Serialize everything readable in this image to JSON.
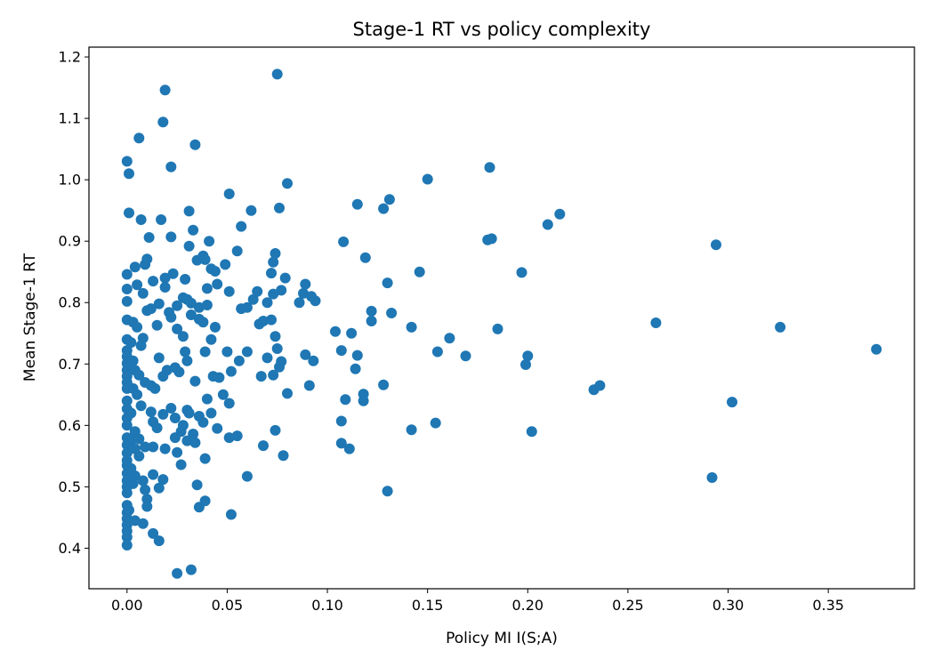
{
  "chart_data": {
    "type": "scatter",
    "title": "Stage-1 RT vs policy complexity",
    "xlabel": "Policy MI I(S;A)",
    "ylabel": "Mean Stage-1 RT",
    "xlim": [
      -0.019,
      0.393
    ],
    "ylim": [
      0.334,
      1.216
    ],
    "xticks": [
      0.0,
      0.05,
      0.1,
      0.15,
      0.2,
      0.25,
      0.3,
      0.35
    ],
    "xtick_labels": [
      "0.00",
      "0.05",
      "0.10",
      "0.15",
      "0.20",
      "0.25",
      "0.30",
      "0.35"
    ],
    "yticks": [
      0.4,
      0.5,
      0.6,
      0.7,
      0.8,
      0.9,
      1.0,
      1.1,
      1.2
    ],
    "ytick_labels": [
      "0.4",
      "0.5",
      "0.6",
      "0.7",
      "0.8",
      "0.9",
      "1.0",
      "1.1",
      "1.2"
    ],
    "grid": false,
    "marker_color": "#1f77b4",
    "points": [
      [
        0.0,
        1.03
      ],
      [
        0.001,
        1.01
      ],
      [
        0.006,
        1.068
      ],
      [
        0.018,
        1.094
      ],
      [
        0.019,
        1.146
      ],
      [
        0.022,
        1.021
      ],
      [
        0.034,
        1.057
      ],
      [
        0.075,
        1.172
      ],
      [
        0.001,
        0.946
      ],
      [
        0.007,
        0.935
      ],
      [
        0.011,
        0.906
      ],
      [
        0.017,
        0.935
      ],
      [
        0.022,
        0.907
      ],
      [
        0.031,
        0.949
      ],
      [
        0.031,
        0.892
      ],
      [
        0.033,
        0.918
      ],
      [
        0.041,
        0.9
      ],
      [
        0.051,
        0.977
      ],
      [
        0.055,
        0.884
      ],
      [
        0.057,
        0.924
      ],
      [
        0.062,
        0.95
      ],
      [
        0.076,
        0.954
      ],
      [
        0.08,
        0.994
      ],
      [
        0.0,
        0.846
      ],
      [
        0.004,
        0.858
      ],
      [
        0.009,
        0.862
      ],
      [
        0.01,
        0.871
      ],
      [
        0.019,
        0.84
      ],
      [
        0.023,
        0.847
      ],
      [
        0.029,
        0.838
      ],
      [
        0.035,
        0.869
      ],
      [
        0.038,
        0.876
      ],
      [
        0.039,
        0.87
      ],
      [
        0.042,
        0.855
      ],
      [
        0.044,
        0.851
      ],
      [
        0.049,
        0.862
      ],
      [
        0.045,
        0.83
      ],
      [
        0.04,
        0.823
      ],
      [
        0.051,
        0.818
      ],
      [
        0.0,
        0.822
      ],
      [
        0.0,
        0.802
      ],
      [
        0.005,
        0.829
      ],
      [
        0.008,
        0.815
      ],
      [
        0.013,
        0.835
      ],
      [
        0.019,
        0.825
      ],
      [
        0.016,
        0.798
      ],
      [
        0.021,
        0.784
      ],
      [
        0.025,
        0.795
      ],
      [
        0.028,
        0.808
      ],
      [
        0.03,
        0.805
      ],
      [
        0.032,
        0.799
      ],
      [
        0.036,
        0.792
      ],
      [
        0.038,
        0.768
      ],
      [
        0.04,
        0.796
      ],
      [
        0.0,
        0.772
      ],
      [
        0.003,
        0.768
      ],
      [
        0.005,
        0.76
      ],
      [
        0.01,
        0.787
      ],
      [
        0.012,
        0.79
      ],
      [
        0.015,
        0.763
      ],
      [
        0.022,
        0.776
      ],
      [
        0.025,
        0.757
      ],
      [
        0.028,
        0.745
      ],
      [
        0.032,
        0.78
      ],
      [
        0.036,
        0.773
      ],
      [
        0.039,
        0.72
      ],
      [
        0.042,
        0.74
      ],
      [
        0.044,
        0.76
      ],
      [
        0.029,
        0.72
      ],
      [
        0.05,
        0.72
      ],
      [
        0.0,
        0.74
      ],
      [
        0.0,
        0.722
      ],
      [
        0.0,
        0.712
      ],
      [
        0.0,
        0.701
      ],
      [
        0.0,
        0.69
      ],
      [
        0.0,
        0.68
      ],
      [
        0.0,
        0.67
      ],
      [
        0.0,
        0.66
      ],
      [
        0.002,
        0.735
      ],
      [
        0.003,
        0.705
      ],
      [
        0.004,
        0.69
      ],
      [
        0.006,
        0.682
      ],
      [
        0.003,
        0.66
      ],
      [
        0.005,
        0.65
      ],
      [
        0.008,
        0.742
      ],
      [
        0.007,
        0.73
      ],
      [
        0.009,
        0.67
      ],
      [
        0.012,
        0.665
      ],
      [
        0.014,
        0.66
      ],
      [
        0.016,
        0.71
      ],
      [
        0.018,
        0.68
      ],
      [
        0.02,
        0.69
      ],
      [
        0.024,
        0.694
      ],
      [
        0.026,
        0.687
      ],
      [
        0.03,
        0.705
      ],
      [
        0.034,
        0.672
      ],
      [
        0.04,
        0.643
      ],
      [
        0.043,
        0.68
      ],
      [
        0.046,
        0.678
      ],
      [
        0.048,
        0.65
      ],
      [
        0.051,
        0.636
      ],
      [
        0.052,
        0.688
      ],
      [
        0.0,
        0.64
      ],
      [
        0.0,
        0.627
      ],
      [
        0.0,
        0.612
      ],
      [
        0.0,
        0.6
      ],
      [
        0.002,
        0.62
      ],
      [
        0.004,
        0.59
      ],
      [
        0.007,
        0.632
      ],
      [
        0.012,
        0.622
      ],
      [
        0.013,
        0.606
      ],
      [
        0.015,
        0.596
      ],
      [
        0.018,
        0.618
      ],
      [
        0.022,
        0.628
      ],
      [
        0.024,
        0.612
      ],
      [
        0.028,
        0.6
      ],
      [
        0.03,
        0.625
      ],
      [
        0.031,
        0.62
      ],
      [
        0.033,
        0.586
      ],
      [
        0.036,
        0.615
      ],
      [
        0.038,
        0.605
      ],
      [
        0.042,
        0.62
      ],
      [
        0.045,
        0.595
      ],
      [
        0.0,
        0.58
      ],
      [
        0.0,
        0.568
      ],
      [
        0.0,
        0.555
      ],
      [
        0.0,
        0.543
      ],
      [
        0.002,
        0.575
      ],
      [
        0.004,
        0.562
      ],
      [
        0.006,
        0.578
      ],
      [
        0.006,
        0.55
      ],
      [
        0.009,
        0.565
      ],
      [
        0.013,
        0.565
      ],
      [
        0.019,
        0.562
      ],
      [
        0.024,
        0.58
      ],
      [
        0.027,
        0.59
      ],
      [
        0.03,
        0.575
      ],
      [
        0.034,
        0.572
      ],
      [
        0.039,
        0.546
      ],
      [
        0.051,
        0.58
      ],
      [
        0.055,
        0.583
      ],
      [
        0.027,
        0.536
      ],
      [
        0.025,
        0.556
      ],
      [
        0.0,
        0.535
      ],
      [
        0.0,
        0.522
      ],
      [
        0.0,
        0.51
      ],
      [
        0.0,
        0.5
      ],
      [
        0.0,
        0.49
      ],
      [
        0.002,
        0.53
      ],
      [
        0.003,
        0.505
      ],
      [
        0.004,
        0.518
      ],
      [
        0.008,
        0.51
      ],
      [
        0.009,
        0.495
      ],
      [
        0.01,
        0.48
      ],
      [
        0.013,
        0.52
      ],
      [
        0.016,
        0.498
      ],
      [
        0.018,
        0.512
      ],
      [
        0.035,
        0.503
      ],
      [
        0.0,
        0.47
      ],
      [
        0.0,
        0.458
      ],
      [
        0.0,
        0.448
      ],
      [
        0.0,
        0.438
      ],
      [
        0.0,
        0.428
      ],
      [
        0.0,
        0.418
      ],
      [
        0.0,
        0.405
      ],
      [
        0.001,
        0.462
      ],
      [
        0.004,
        0.445
      ],
      [
        0.008,
        0.44
      ],
      [
        0.01,
        0.468
      ],
      [
        0.013,
        0.424
      ],
      [
        0.016,
        0.412
      ],
      [
        0.036,
        0.467
      ],
      [
        0.039,
        0.477
      ],
      [
        0.052,
        0.455
      ],
      [
        0.025,
        0.359
      ],
      [
        0.032,
        0.365
      ],
      [
        0.06,
        0.517
      ],
      [
        0.074,
        0.592
      ],
      [
        0.068,
        0.567
      ],
      [
        0.078,
        0.551
      ],
      [
        0.06,
        0.72
      ],
      [
        0.057,
        0.79
      ],
      [
        0.06,
        0.792
      ],
      [
        0.063,
        0.805
      ],
      [
        0.065,
        0.818
      ],
      [
        0.066,
        0.765
      ],
      [
        0.068,
        0.77
      ],
      [
        0.07,
        0.8
      ],
      [
        0.072,
        0.848
      ],
      [
        0.073,
        0.866
      ],
      [
        0.074,
        0.88
      ],
      [
        0.073,
        0.814
      ],
      [
        0.072,
        0.772
      ],
      [
        0.074,
        0.745
      ],
      [
        0.075,
        0.725
      ],
      [
        0.073,
        0.682
      ],
      [
        0.07,
        0.71
      ],
      [
        0.067,
        0.68
      ],
      [
        0.056,
        0.705
      ],
      [
        0.077,
        0.82
      ],
      [
        0.079,
        0.84
      ],
      [
        0.077,
        0.704
      ],
      [
        0.076,
        0.695
      ],
      [
        0.08,
        0.652
      ],
      [
        0.086,
        0.8
      ],
      [
        0.088,
        0.815
      ],
      [
        0.089,
        0.83
      ],
      [
        0.089,
        0.715
      ],
      [
        0.091,
        0.665
      ],
      [
        0.092,
        0.81
      ],
      [
        0.094,
        0.803
      ],
      [
        0.093,
        0.705
      ],
      [
        0.104,
        0.753
      ],
      [
        0.107,
        0.722
      ],
      [
        0.107,
        0.607
      ],
      [
        0.107,
        0.571
      ],
      [
        0.108,
        0.899
      ],
      [
        0.109,
        0.642
      ],
      [
        0.111,
        0.562
      ],
      [
        0.112,
        0.75
      ],
      [
        0.114,
        0.692
      ],
      [
        0.115,
        0.96
      ],
      [
        0.115,
        0.714
      ],
      [
        0.118,
        0.651
      ],
      [
        0.118,
        0.64
      ],
      [
        0.119,
        0.873
      ],
      [
        0.122,
        0.786
      ],
      [
        0.122,
        0.77
      ],
      [
        0.128,
        0.953
      ],
      [
        0.128,
        0.666
      ],
      [
        0.13,
        0.832
      ],
      [
        0.131,
        0.968
      ],
      [
        0.132,
        0.783
      ],
      [
        0.13,
        0.493
      ],
      [
        0.142,
        0.76
      ],
      [
        0.142,
        0.593
      ],
      [
        0.146,
        0.85
      ],
      [
        0.15,
        1.001
      ],
      [
        0.154,
        0.604
      ],
      [
        0.155,
        0.72
      ],
      [
        0.161,
        0.742
      ],
      [
        0.169,
        0.713
      ],
      [
        0.18,
        0.902
      ],
      [
        0.181,
        1.02
      ],
      [
        0.182,
        0.904
      ],
      [
        0.185,
        0.757
      ],
      [
        0.197,
        0.849
      ],
      [
        0.199,
        0.699
      ],
      [
        0.2,
        0.713
      ],
      [
        0.202,
        0.59
      ],
      [
        0.21,
        0.927
      ],
      [
        0.216,
        0.944
      ],
      [
        0.233,
        0.658
      ],
      [
        0.236,
        0.665
      ],
      [
        0.264,
        0.767
      ],
      [
        0.292,
        0.515
      ],
      [
        0.294,
        0.894
      ],
      [
        0.302,
        0.638
      ],
      [
        0.326,
        0.76
      ],
      [
        0.374,
        0.724
      ]
    ]
  }
}
